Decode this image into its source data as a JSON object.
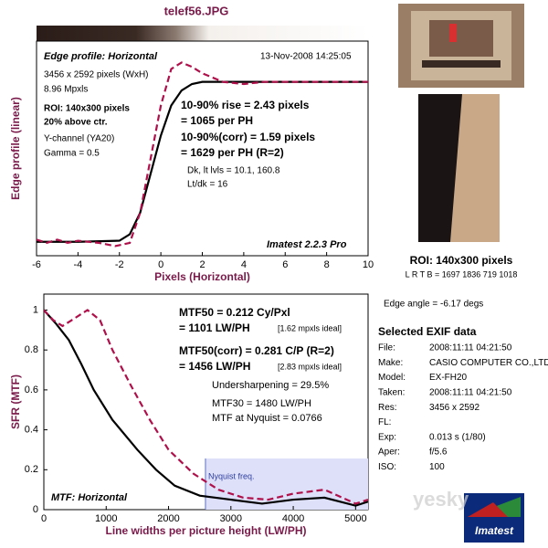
{
  "file_title": "telef56.JPG",
  "chart_data": [
    {
      "type": "line",
      "xlabel": "Pixels (Horizontal)",
      "ylabel": "Edge profile (linear)",
      "xlim": [
        -6,
        10
      ],
      "xticks": [
        -6,
        -4,
        -2,
        0,
        2,
        4,
        6,
        8,
        10
      ],
      "ylim": [
        0,
        1
      ],
      "series": [
        {
          "color": "#000000",
          "dash": false,
          "x": [
            -6,
            -4,
            -2,
            -1.5,
            -1,
            -0.5,
            0,
            0.5,
            1,
            1.5,
            2,
            4,
            6,
            10
          ],
          "values": [
            0.065,
            0.065,
            0.07,
            0.1,
            0.2,
            0.38,
            0.56,
            0.7,
            0.77,
            0.8,
            0.81,
            0.81,
            0.81,
            0.81
          ]
        },
        {
          "color": "#b0104a",
          "dash": true,
          "x": [
            -6,
            -5.5,
            -5,
            -4.5,
            -4,
            -3,
            -2.2,
            -1.5,
            -1,
            -0.5,
            0,
            0.5,
            1,
            1.5,
            2,
            3,
            4,
            5,
            6,
            8,
            10
          ],
          "values": [
            0.075,
            0.06,
            0.075,
            0.06,
            0.07,
            0.06,
            0.045,
            0.06,
            0.2,
            0.45,
            0.7,
            0.87,
            0.9,
            0.88,
            0.85,
            0.81,
            0.8,
            0.81,
            0.81,
            0.81,
            0.81
          ]
        }
      ],
      "annotations": [
        {
          "text": "Edge profile: Horizontal",
          "color": "#000000"
        },
        {
          "text": "13-Nov-2008 14:25:05",
          "color": "#000000"
        },
        {
          "text": "3456 x 2592 pixels (WxH)",
          "color": "#000000"
        },
        {
          "text": "8.96 Mpxls",
          "color": "#000000"
        },
        {
          "text": "ROI: 140x300 pixels",
          "color": "#000000"
        },
        {
          "text": "20% above ctr.",
          "color": "#000000"
        },
        {
          "text": "Y-channel  (YA20)",
          "color": "#000000"
        },
        {
          "text": "Gamma = 0.5",
          "color": "#000000"
        },
        {
          "text": "10-90% rise = 2.43 pixels",
          "color": "#000000"
        },
        {
          "text": "= 1065 per PH",
          "color": "#000000"
        },
        {
          "text": "10-90%(corr) = 1.59 pixels",
          "color": "#b0104a"
        },
        {
          "text": "= 1629 per PH  (R=2)",
          "color": "#b0104a"
        },
        {
          "text": "Dk, lt lvls = 10.1, 160.8",
          "color": "#777777"
        },
        {
          "text": "Lt/dk = 16",
          "color": "#777777"
        },
        {
          "text": "Imatest 2.2.3 Pro",
          "color": "#1a2a7a"
        }
      ]
    },
    {
      "type": "line",
      "xlabel": "Line widths per picture height (LW/PH)",
      "ylabel": "SFR (MTF)",
      "xlim": [
        0,
        5200
      ],
      "xticks": [
        0,
        1000,
        2000,
        3000,
        4000,
        5000
      ],
      "ylim": [
        0,
        1.08
      ],
      "yticks": [
        0,
        0.2,
        0.4,
        0.6,
        0.8,
        1
      ],
      "nyquist": 2592,
      "nyquist_label": "Nyquist freq.",
      "nyquist_color": "#dde0f8",
      "series": [
        {
          "color": "#000000",
          "dash": false,
          "x": [
            0,
            200,
            400,
            600,
            800,
            1100,
            1500,
            1800,
            2100,
            2500,
            3000,
            3500,
            4000,
            4500,
            5000,
            5200
          ],
          "values": [
            1,
            0.93,
            0.85,
            0.73,
            0.6,
            0.45,
            0.3,
            0.2,
            0.12,
            0.07,
            0.05,
            0.03,
            0.05,
            0.06,
            0.02,
            0.04
          ]
        },
        {
          "color": "#b0104a",
          "dash": true,
          "x": [
            0,
            150,
            300,
            500,
            700,
            900,
            1100,
            1400,
            1700,
            2000,
            2400,
            2800,
            3200,
            3600,
            4000,
            4500,
            5000,
            5200
          ],
          "values": [
            1,
            0.95,
            0.92,
            0.96,
            1.0,
            0.95,
            0.8,
            0.62,
            0.45,
            0.3,
            0.18,
            0.1,
            0.06,
            0.05,
            0.08,
            0.1,
            0.03,
            0.05
          ]
        }
      ],
      "annotations": [
        {
          "text": "MTF50 = 0.212 Cy/Pxl",
          "color": "#000000"
        },
        {
          "text": "= 1101 LW/PH",
          "color": "#000000"
        },
        {
          "text": "[1.62 mpxls ideal]",
          "color": "#888888"
        },
        {
          "text": "MTF50(corr) = 0.281 C/P  (R=2)",
          "color": "#b0104a"
        },
        {
          "text": "= 1456 LW/PH",
          "color": "#b0104a"
        },
        {
          "text": "[2.83 mpxls ideal]",
          "color": "#d080a0"
        },
        {
          "text": "Undersharpening = 29.5%",
          "color": "#b0104a"
        },
        {
          "text": "MTF30 = 1480 LW/PH",
          "color": "#000000"
        },
        {
          "text": "MTF at Nyquist = 0.0766",
          "color": "#000000"
        },
        {
          "text": "MTF: Horizontal",
          "color": "#000000"
        }
      ]
    }
  ],
  "roi": {
    "title": "ROI: 140x300 pixels",
    "lrtb": "L R  T B = 1697 1836  719 1018",
    "edge_angle": "Edge angle = -6.17 degs"
  },
  "exif": {
    "title": "Selected EXIF data",
    "rows": [
      [
        "File:",
        "2008:11:11 04:21:50"
      ],
      [
        "Make:",
        "CASIO COMPUTER CO.,LTD."
      ],
      [
        "Model:",
        "EX-FH20"
      ],
      [
        "Taken:",
        "2008:11:11 04:21:50"
      ],
      [
        "Res:",
        "3456 x 2592"
      ],
      [
        "FL:"
      ],
      [
        "Exp:",
        "0.013 s  (1/80)"
      ],
      [
        "Aper:",
        "f/5.6"
      ],
      [
        "ISO:",
        "100"
      ]
    ]
  },
  "logo": "Imatest",
  "watermark": "yesky"
}
